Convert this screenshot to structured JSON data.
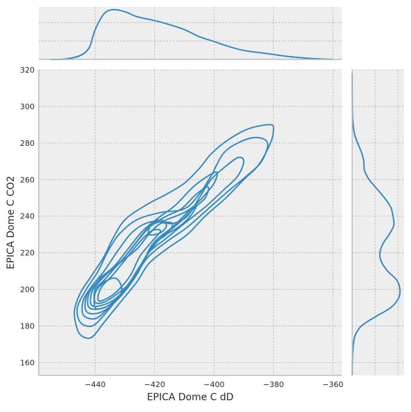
{
  "chart_data": {
    "type": "kde-jointplot",
    "xlabel": "EPICA Dome C dD",
    "ylabel": "EPICA Dome C CO2",
    "xlim": [
      -459,
      -357
    ],
    "ylim": [
      153,
      320
    ],
    "x_ticks": [
      -440,
      -420,
      -400,
      -380,
      -360
    ],
    "y_ticks": [
      160,
      180,
      200,
      220,
      240,
      260,
      280,
      300,
      320
    ],
    "grid": true,
    "line_color": "#348ABD",
    "panel_color": "#EEEEEE",
    "grid_color": "#B2B2B2",
    "marginal_x": {
      "x": [
        -455,
        -450,
        -445,
        -442,
        -440,
        -437,
        -434,
        -430,
        -426,
        -420,
        -415,
        -410,
        -405,
        -400,
        -395,
        -390,
        -385,
        -380,
        -375,
        -370,
        -365,
        -360
      ],
      "density": [
        0.0,
        0.002,
        0.02,
        0.06,
        0.15,
        0.23,
        0.25,
        0.24,
        0.215,
        0.195,
        0.175,
        0.15,
        0.115,
        0.09,
        0.065,
        0.045,
        0.035,
        0.025,
        0.015,
        0.008,
        0.003,
        0.0
      ]
    },
    "marginal_y": {
      "y": [
        153,
        160,
        165,
        170,
        175,
        180,
        185,
        190,
        195,
        200,
        205,
        210,
        215,
        220,
        225,
        230,
        235,
        240,
        245,
        250,
        255,
        260,
        265,
        270,
        275,
        280,
        285,
        290,
        295,
        300,
        310,
        318
      ],
      "density": [
        0.0,
        0.001,
        0.003,
        0.008,
        0.02,
        0.06,
        0.15,
        0.25,
        0.3,
        0.31,
        0.29,
        0.23,
        0.19,
        0.18,
        0.2,
        0.24,
        0.27,
        0.265,
        0.25,
        0.21,
        0.16,
        0.11,
        0.08,
        0.075,
        0.06,
        0.035,
        0.015,
        0.006,
        0.002,
        0.001,
        0.0,
        0.0
      ]
    },
    "contours": [
      {
        "level": 1,
        "points": [
          [
            -446,
            178
          ],
          [
            -447,
            188
          ],
          [
            -445,
            198
          ],
          [
            -441,
            208
          ],
          [
            -437,
            218
          ],
          [
            -434,
            228
          ],
          [
            -430,
            238
          ],
          [
            -423,
            246
          ],
          [
            -416,
            252
          ],
          [
            -410,
            258
          ],
          [
            -405,
            266
          ],
          [
            -401,
            274
          ],
          [
            -395,
            282
          ],
          [
            -388,
            288
          ],
          [
            -381,
            290
          ],
          [
            -380,
            287
          ],
          [
            -381,
            280
          ],
          [
            -385,
            268
          ],
          [
            -390,
            260
          ],
          [
            -396,
            250
          ],
          [
            -403,
            240
          ],
          [
            -409,
            230
          ],
          [
            -416,
            222
          ],
          [
            -422,
            214
          ],
          [
            -426,
            204
          ],
          [
            -432,
            192
          ],
          [
            -437,
            182
          ],
          [
            -441,
            174
          ],
          [
            -444,
            174
          ]
        ]
      },
      {
        "level": 2,
        "points": [
          [
            -445,
            182
          ],
          [
            -446,
            190
          ],
          [
            -443,
            200
          ],
          [
            -439,
            210
          ],
          [
            -436,
            220
          ],
          [
            -432,
            230
          ],
          [
            -426,
            238
          ],
          [
            -418,
            242
          ],
          [
            -410,
            244
          ],
          [
            -405,
            252
          ],
          [
            -401,
            262
          ],
          [
            -397,
            274
          ],
          [
            -392,
            280
          ],
          [
            -386,
            283
          ],
          [
            -382,
            280
          ],
          [
            -384,
            270
          ],
          [
            -389,
            262
          ],
          [
            -395,
            254
          ],
          [
            -402,
            244
          ],
          [
            -409,
            234
          ],
          [
            -416,
            226
          ],
          [
            -422,
            218
          ],
          [
            -427,
            207
          ],
          [
            -432,
            196
          ],
          [
            -437,
            186
          ],
          [
            -441,
            180
          ]
        ]
      },
      {
        "level": 3,
        "points": [
          [
            -444,
            186
          ],
          [
            -444,
            194
          ],
          [
            -441,
            202
          ],
          [
            -437,
            210
          ],
          [
            -432,
            222
          ],
          [
            -427,
            232
          ],
          [
            -421,
            237
          ],
          [
            -414,
            236
          ],
          [
            -409,
            240
          ],
          [
            -405,
            250
          ],
          [
            -401,
            260
          ],
          [
            -397,
            266
          ],
          [
            -392,
            272
          ],
          [
            -390,
            270
          ],
          [
            -392,
            262
          ],
          [
            -397,
            254
          ],
          [
            -403,
            245
          ],
          [
            -410,
            236
          ],
          [
            -416,
            228
          ],
          [
            -422,
            220
          ],
          [
            -426,
            208
          ],
          [
            -431,
            197
          ],
          [
            -436,
            189
          ],
          [
            -440,
            184
          ]
        ]
      },
      {
        "level": 4,
        "points": [
          [
            -443,
            188
          ],
          [
            -443,
            196
          ],
          [
            -440,
            204
          ],
          [
            -434,
            212
          ],
          [
            -429,
            222
          ],
          [
            -424,
            232
          ],
          [
            -418,
            240
          ],
          [
            -413,
            246
          ],
          [
            -407,
            256
          ],
          [
            -402,
            262
          ],
          [
            -399,
            264
          ],
          [
            -400,
            258
          ],
          [
            -404,
            250
          ],
          [
            -409,
            242
          ],
          [
            -414,
            234
          ],
          [
            -420,
            226
          ],
          [
            -424,
            214
          ],
          [
            -429,
            202
          ],
          [
            -434,
            192
          ],
          [
            -439,
            187
          ]
        ]
      },
      {
        "level": 5,
        "points": [
          [
            -442,
            190
          ],
          [
            -442,
            198
          ],
          [
            -438,
            206
          ],
          [
            -432,
            214
          ],
          [
            -427,
            224
          ],
          [
            -422,
            234
          ],
          [
            -416,
            240
          ],
          [
            -411,
            244
          ],
          [
            -406,
            252
          ],
          [
            -402,
            256
          ],
          [
            -403,
            250
          ],
          [
            -407,
            244
          ],
          [
            -412,
            236
          ],
          [
            -418,
            228
          ],
          [
            -423,
            218
          ],
          [
            -427,
            206
          ],
          [
            -432,
            196
          ],
          [
            -437,
            190
          ]
        ]
      },
      {
        "level": 6,
        "points": [
          [
            -441,
            191
          ],
          [
            -441,
            199
          ],
          [
            -437,
            207
          ],
          [
            -431,
            216
          ],
          [
            -426,
            226
          ],
          [
            -421,
            235
          ],
          [
            -416,
            238
          ],
          [
            -410,
            242
          ],
          [
            -406,
            246
          ],
          [
            -408,
            240
          ],
          [
            -412,
            234
          ],
          [
            -418,
            228
          ],
          [
            -422,
            220
          ],
          [
            -426,
            210
          ],
          [
            -430,
            200
          ],
          [
            -435,
            193
          ]
        ]
      },
      {
        "level": 7,
        "points": [
          [
            -440,
            193
          ],
          [
            -440,
            200
          ],
          [
            -437,
            205
          ],
          [
            -432,
            214
          ],
          [
            -426,
            222
          ],
          [
            -422,
            230
          ],
          [
            -418,
            236
          ],
          [
            -414,
            236
          ],
          [
            -416,
            230
          ],
          [
            -421,
            224
          ],
          [
            -424,
            214
          ],
          [
            -428,
            204
          ],
          [
            -433,
            197
          ],
          [
            -437,
            193
          ]
        ]
      },
      {
        "level": 8,
        "points": [
          [
            -439,
            194
          ],
          [
            -438,
            201
          ],
          [
            -434,
            208
          ],
          [
            -429,
            218
          ],
          [
            -425,
            226
          ],
          [
            -421,
            232
          ],
          [
            -418,
            232
          ],
          [
            -421,
            226
          ],
          [
            -425,
            218
          ],
          [
            -428,
            208
          ],
          [
            -432,
            200
          ],
          [
            -436,
            195
          ]
        ]
      },
      {
        "level": 9,
        "points": [
          [
            -440,
            190
          ],
          [
            -440,
            198
          ],
          [
            -437,
            204
          ],
          [
            -433,
            206
          ],
          [
            -431,
            200
          ],
          [
            -433,
            194
          ],
          [
            -437,
            190
          ]
        ]
      },
      {
        "level": 10,
        "points": [
          [
            -422,
            230
          ],
          [
            -421,
            236
          ],
          [
            -418,
            238
          ],
          [
            -416,
            235
          ],
          [
            -418,
            231
          ]
        ]
      }
    ]
  }
}
